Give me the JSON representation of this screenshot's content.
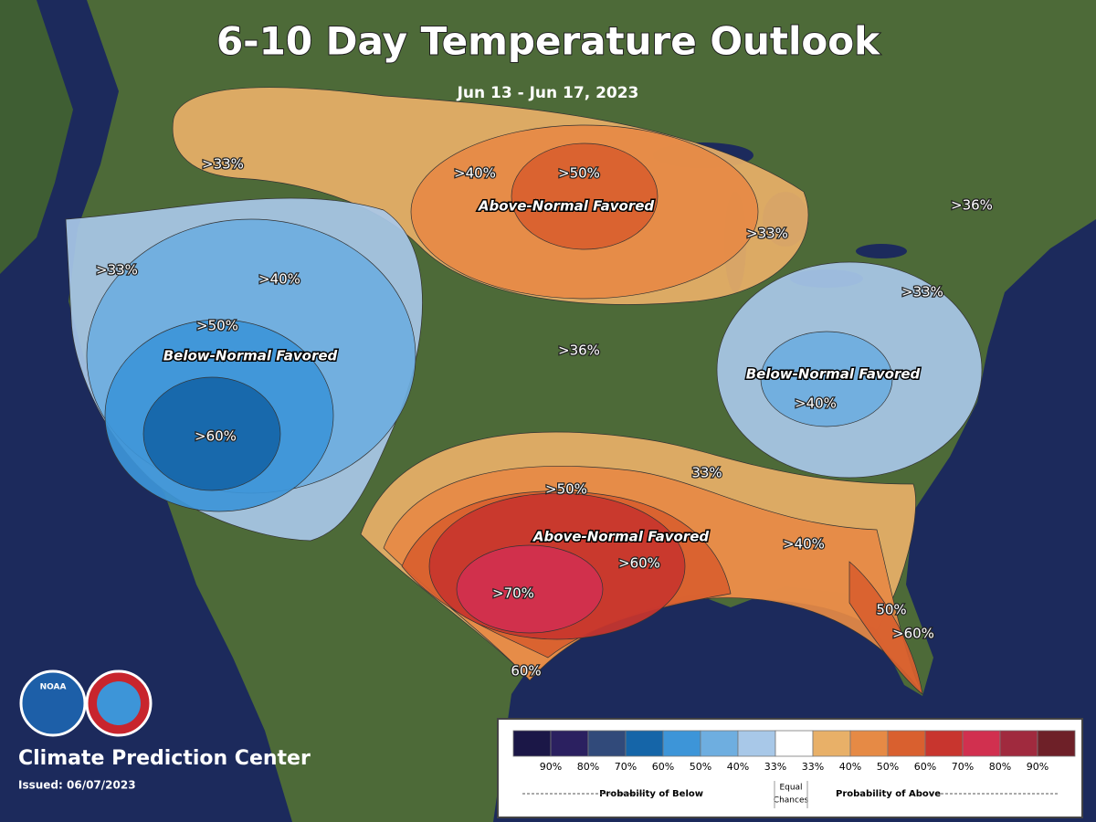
{
  "header": {
    "title": "6-10 Day Temperature Outlook",
    "subtitle": "Jun 13 - Jun 17, 2023"
  },
  "map_labels": [
    ">33%",
    ">40%",
    ">50%",
    "Above-Normal Favored",
    ">33%",
    ">36%",
    ">33%",
    ">40%",
    ">50%",
    "Below-Normal Favored",
    ">36%",
    ">33%",
    "Below-Normal Favored",
    ">40%",
    ">60%",
    "33%",
    ">50%",
    "Above-Normal Favored",
    ">40%",
    ">60%",
    ">70%",
    "50%",
    ">60%",
    "60%"
  ],
  "footer": {
    "agency": "Climate Prediction Center",
    "issued": "Issued: 06/07/2023"
  },
  "logos": {
    "noaa": "NOAA"
  },
  "legend": {
    "swatch_colors": [
      "#1b1747",
      "#2b2060",
      "#314a7a",
      "#1565a8",
      "#3d95d8",
      "#6eaee0",
      "#a8c8e8",
      "#ffffff",
      "#e8b068",
      "#e68a45",
      "#d9602f",
      "#c8352e",
      "#d1304f",
      "#a02a3e",
      "#6e2028"
    ],
    "ticks": [
      "90%",
      "80%",
      "70%",
      "60%",
      "50%",
      "40%",
      "33%",
      "33%",
      "40%",
      "50%",
      "60%",
      "70%",
      "80%",
      "90%"
    ],
    "below": "Probability of Below",
    "equal": [
      "Equal",
      "Chances"
    ],
    "above": "Probability of Above"
  }
}
